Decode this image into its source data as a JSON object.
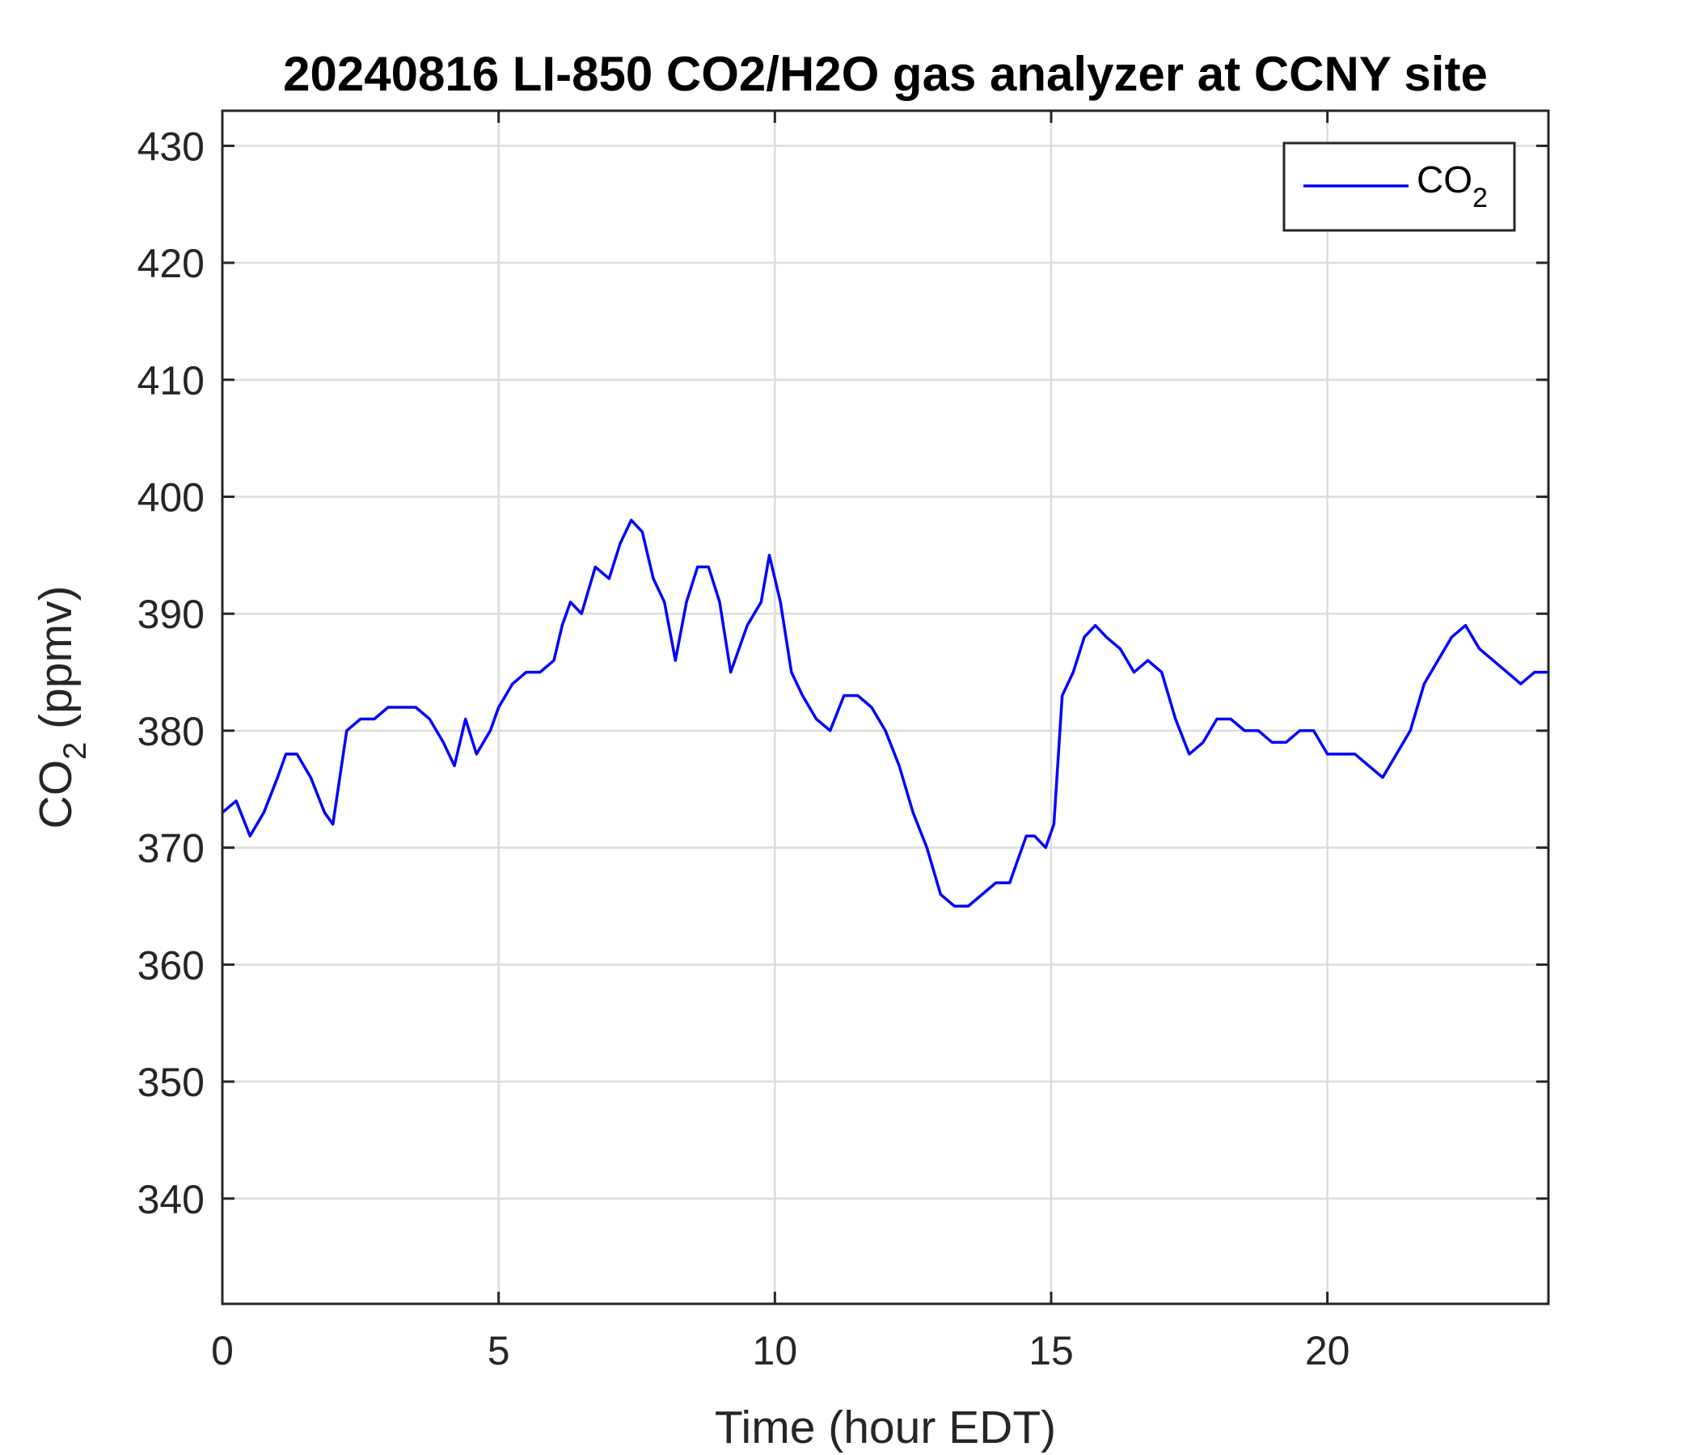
{
  "chart_data": {
    "type": "line",
    "title": "20240816 LI-850 CO2/H2O gas analyzer at CCNY site",
    "xlabel": "Time (hour EDT)",
    "ylabel": {
      "main": "CO",
      "sub": "2",
      "rest": " (ppmv)"
    },
    "xlim": [
      0,
      24
    ],
    "ylim": [
      331,
      433
    ],
    "xticks": [
      0,
      5,
      10,
      15,
      20
    ],
    "yticks": [
      340,
      350,
      360,
      370,
      380,
      390,
      400,
      410,
      420,
      430
    ],
    "grid": true,
    "legend_position": "top-right",
    "series": [
      {
        "name": {
          "main": "CO",
          "sub": "2"
        },
        "color": "#0000ff",
        "x": [
          0.0,
          0.25,
          0.5,
          0.75,
          1.0,
          1.15,
          1.35,
          1.6,
          1.85,
          2.0,
          2.25,
          2.5,
          2.75,
          3.0,
          3.25,
          3.5,
          3.75,
          4.0,
          4.2,
          4.4,
          4.6,
          4.85,
          5.0,
          5.25,
          5.5,
          5.75,
          6.0,
          6.15,
          6.3,
          6.5,
          6.75,
          7.0,
          7.2,
          7.4,
          7.6,
          7.8,
          8.0,
          8.2,
          8.4,
          8.6,
          8.8,
          9.0,
          9.2,
          9.5,
          9.75,
          9.9,
          10.1,
          10.3,
          10.5,
          10.75,
          11.0,
          11.25,
          11.5,
          11.75,
          12.0,
          12.25,
          12.5,
          12.75,
          13.0,
          13.25,
          13.5,
          13.75,
          14.0,
          14.25,
          14.4,
          14.55,
          14.7,
          14.9,
          15.05,
          15.2,
          15.4,
          15.6,
          15.8,
          16.0,
          16.25,
          16.5,
          16.75,
          17.0,
          17.25,
          17.5,
          17.75,
          18.0,
          18.25,
          18.5,
          18.75,
          19.0,
          19.25,
          19.5,
          19.75,
          20.0,
          20.25,
          20.5,
          20.75,
          21.0,
          21.25,
          21.5,
          21.75,
          22.0,
          22.25,
          22.5,
          22.75,
          23.0,
          23.25,
          23.5,
          23.75,
          24.0
        ],
        "y": [
          373,
          374,
          371,
          373,
          376,
          378,
          378,
          376,
          373,
          372,
          380,
          381,
          381,
          382,
          382,
          382,
          381,
          379,
          377,
          381,
          378,
          380,
          382,
          384,
          385,
          385,
          386,
          389,
          391,
          390,
          394,
          393,
          396,
          398,
          397,
          393,
          391,
          386,
          391,
          394,
          394,
          391,
          385,
          389,
          391,
          395,
          391,
          385,
          383,
          381,
          380,
          383,
          383,
          382,
          380,
          377,
          373,
          370,
          366,
          365,
          365,
          366,
          367,
          367,
          369,
          371,
          371,
          370,
          372,
          383,
          385,
          388,
          389,
          388,
          387,
          385,
          386,
          385,
          381,
          378,
          379,
          381,
          381,
          380,
          380,
          379,
          379,
          380,
          380,
          378,
          378,
          378,
          377,
          376,
          378,
          380,
          384,
          386,
          388,
          389,
          387,
          386,
          385,
          384,
          385,
          385
        ]
      }
    ]
  }
}
